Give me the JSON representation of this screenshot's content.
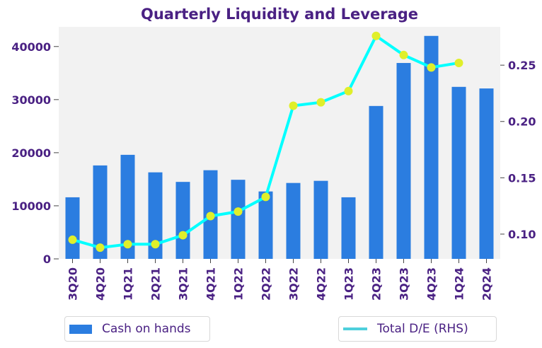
{
  "chart_data": {
    "type": "bar+line",
    "title": "Quarterly Liquidity and Leverage",
    "categories": [
      "3Q20",
      "4Q20",
      "1Q21",
      "2Q21",
      "3Q21",
      "4Q21",
      "1Q22",
      "2Q22",
      "3Q22",
      "4Q22",
      "1Q23",
      "2Q23",
      "3Q23",
      "4Q23",
      "1Q24",
      "2Q24"
    ],
    "series": [
      {
        "name": "Cash on hands",
        "type": "bar",
        "axis": "left",
        "color": "#2b7de0",
        "values": [
          11600,
          17600,
          19600,
          16300,
          14500,
          16700,
          14900,
          12700,
          14300,
          14700,
          11600,
          28800,
          36900,
          42000,
          32400,
          32100
        ]
      },
      {
        "name": "Total D/E (RHS)",
        "type": "line",
        "axis": "right",
        "color": "#00ffff",
        "marker_color": "#e0ef2a",
        "values": [
          0.095,
          0.088,
          0.091,
          0.091,
          0.099,
          0.116,
          0.12,
          0.133,
          0.214,
          0.217,
          0.227,
          0.276,
          0.259,
          0.248,
          0.252,
          null
        ]
      }
    ],
    "ylim_left": [
      0,
      43700
    ],
    "yticks_left": [
      0,
      10000,
      20000,
      30000,
      40000
    ],
    "ylim_right": [
      0.078,
      0.284
    ],
    "yticks_right": [
      "0.10",
      "0.15",
      "0.20",
      "0.25"
    ],
    "legend": [
      "Cash on hands",
      "Total D/E (RHS)"
    ],
    "legend_placement": "bottom"
  }
}
